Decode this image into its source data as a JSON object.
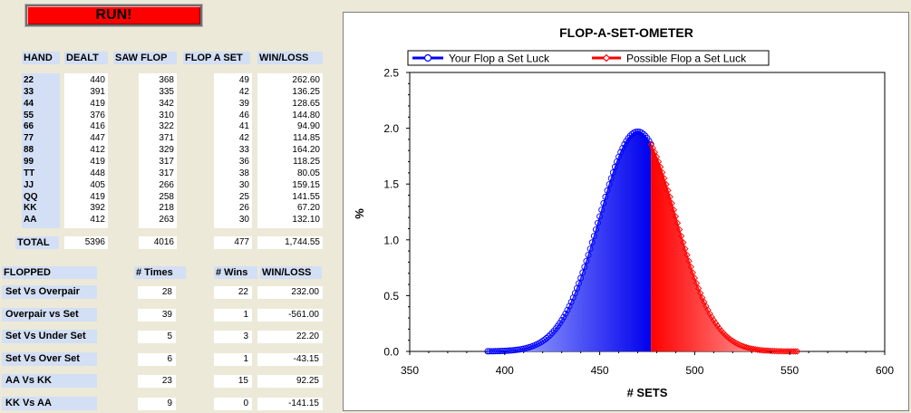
{
  "run_label": "RUN!",
  "hands_table": {
    "headers": [
      "HAND",
      "DEALT",
      "SAW FLOP",
      "FLOP A SET",
      "WIN/LOSS"
    ],
    "rows": [
      {
        "hand": "22",
        "dealt": "440",
        "saw_flop": "368",
        "flop_a_set": "49",
        "win_loss": "262.60"
      },
      {
        "hand": "33",
        "dealt": "391",
        "saw_flop": "335",
        "flop_a_set": "42",
        "win_loss": "136.25"
      },
      {
        "hand": "44",
        "dealt": "419",
        "saw_flop": "342",
        "flop_a_set": "39",
        "win_loss": "128.65"
      },
      {
        "hand": "55",
        "dealt": "376",
        "saw_flop": "310",
        "flop_a_set": "46",
        "win_loss": "144.80"
      },
      {
        "hand": "66",
        "dealt": "416",
        "saw_flop": "322",
        "flop_a_set": "41",
        "win_loss": "94.90"
      },
      {
        "hand": "77",
        "dealt": "447",
        "saw_flop": "371",
        "flop_a_set": "42",
        "win_loss": "114.85"
      },
      {
        "hand": "88",
        "dealt": "412",
        "saw_flop": "329",
        "flop_a_set": "33",
        "win_loss": "164.20"
      },
      {
        "hand": "99",
        "dealt": "419",
        "saw_flop": "317",
        "flop_a_set": "36",
        "win_loss": "118.25"
      },
      {
        "hand": "TT",
        "dealt": "448",
        "saw_flop": "317",
        "flop_a_set": "38",
        "win_loss": "80.05"
      },
      {
        "hand": "JJ",
        "dealt": "405",
        "saw_flop": "266",
        "flop_a_set": "30",
        "win_loss": "159.15"
      },
      {
        "hand": "QQ",
        "dealt": "419",
        "saw_flop": "258",
        "flop_a_set": "25",
        "win_loss": "141.55"
      },
      {
        "hand": "KK",
        "dealt": "392",
        "saw_flop": "218",
        "flop_a_set": "26",
        "win_loss": "67.20"
      },
      {
        "hand": "AA",
        "dealt": "412",
        "saw_flop": "263",
        "flop_a_set": "30",
        "win_loss": "132.10"
      }
    ],
    "total": {
      "label": "TOTAL",
      "dealt": "5396",
      "saw_flop": "4016",
      "flop_a_set": "477",
      "win_loss": "1,744.55"
    }
  },
  "flopped_table": {
    "headers": [
      "FLOPPED",
      "# Times",
      "# Wins",
      "WIN/LOSS"
    ],
    "rows": [
      {
        "label": "Set Vs Overpair",
        "times": "28",
        "wins": "22",
        "win_loss": "232.00"
      },
      {
        "label": "Overpair vs Set",
        "times": "39",
        "wins": "1",
        "win_loss": "-561.00"
      },
      {
        "label": "Set Vs Under Set",
        "times": "5",
        "wins": "3",
        "win_loss": "22.20"
      },
      {
        "label": "Set Vs Over Set",
        "times": "6",
        "wins": "1",
        "win_loss": "-43.15"
      },
      {
        "label": "AA Vs KK",
        "times": "23",
        "wins": "15",
        "win_loss": "92.25"
      },
      {
        "label": "KK Vs AA",
        "times": "9",
        "wins": "0",
        "win_loss": "-141.15"
      }
    ]
  },
  "chart_data": {
    "type": "area",
    "title": "FLOP-A-SET-OMETER",
    "xlabel": "# SETS",
    "ylabel": "%",
    "xlim": [
      350,
      600
    ],
    "ylim": [
      0,
      2.5
    ],
    "x_ticks": [
      "350",
      "400",
      "450",
      "500",
      "550",
      "600"
    ],
    "y_ticks": [
      "0.0",
      "0.5",
      "1.0",
      "1.5",
      "2.0",
      "2.5"
    ],
    "legend_placement": "top",
    "series": [
      {
        "name": "Your Flop a Set Luck",
        "color": "#0000ff",
        "x_range": [
          391,
          477
        ]
      },
      {
        "name": "Possible Flop a Set Luck",
        "color": "#ff0000",
        "x_range": [
          477,
          554
        ]
      }
    ],
    "distribution": {
      "mean": 470,
      "peak_percent": 1.97,
      "x_min": 391,
      "x_max": 554,
      "step": 1
    }
  }
}
